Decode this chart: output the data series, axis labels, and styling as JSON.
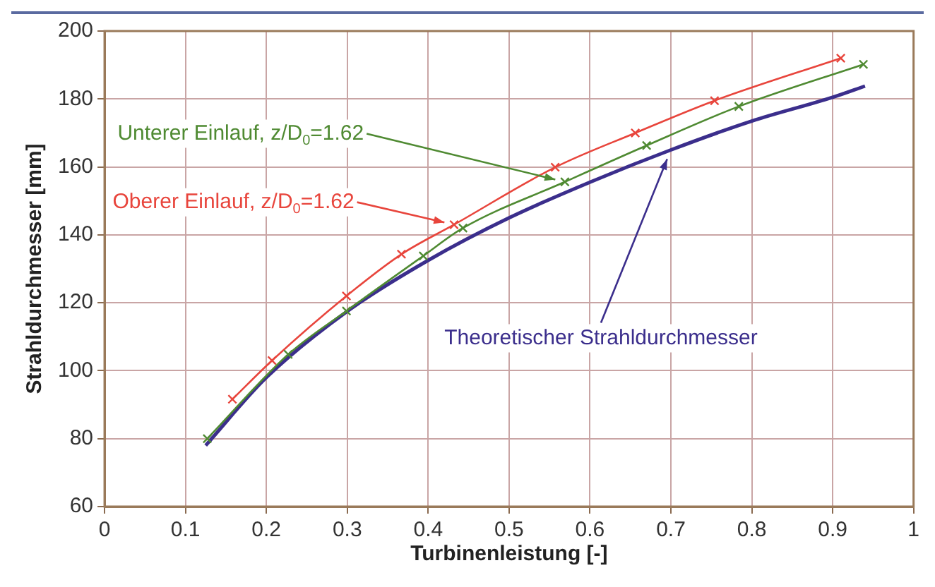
{
  "chart_data": {
    "type": "line",
    "xlabel": "Turbinenleistung [-]",
    "ylabel": "Strahldurchmesser [mm]",
    "xlim": [
      0,
      1
    ],
    "xticks": [
      0,
      0.1,
      0.2,
      0.3,
      0.4,
      0.5,
      0.6,
      0.7,
      0.8,
      0.9,
      1
    ],
    "ylim": [
      60,
      200
    ],
    "yticks": [
      60,
      80,
      100,
      120,
      140,
      160,
      180,
      200
    ],
    "grid": true,
    "line_style": "solid",
    "series": [
      {
        "name": "Unterer Einlauf, z/D$_{0}$=1.62",
        "color": "#4f8a32",
        "marker": "cross",
        "x": [
          0.127,
          0.227,
          0.299,
          0.394,
          0.443,
          0.569,
          0.67,
          0.784,
          0.938
        ],
        "values": [
          80,
          104.8,
          117.6,
          133.8,
          142,
          155.6,
          166.3,
          177.8,
          190.2
        ]
      },
      {
        "name": "Oberer Einlauf, z/D$_{0}$=1.62",
        "color": "#e8453c",
        "marker": "cross",
        "x": [
          0.158,
          0.207,
          0.299,
          0.367,
          0.432,
          0.557,
          0.656,
          0.754,
          0.91
        ],
        "values": [
          91.6,
          103,
          122,
          134.3,
          143,
          159.9,
          170,
          179.5,
          192
        ]
      },
      {
        "name": "Theoretischer Strahldurchmesser",
        "color": "#3b2e8c",
        "marker": "none",
        "x": [
          0.125,
          0.2,
          0.3,
          0.4,
          0.5,
          0.6,
          0.7,
          0.8,
          0.9,
          0.94
        ],
        "values": [
          78,
          98,
          117.5,
          132.5,
          145,
          155.5,
          165,
          173.5,
          180.5,
          183.8
        ]
      }
    ]
  }
}
